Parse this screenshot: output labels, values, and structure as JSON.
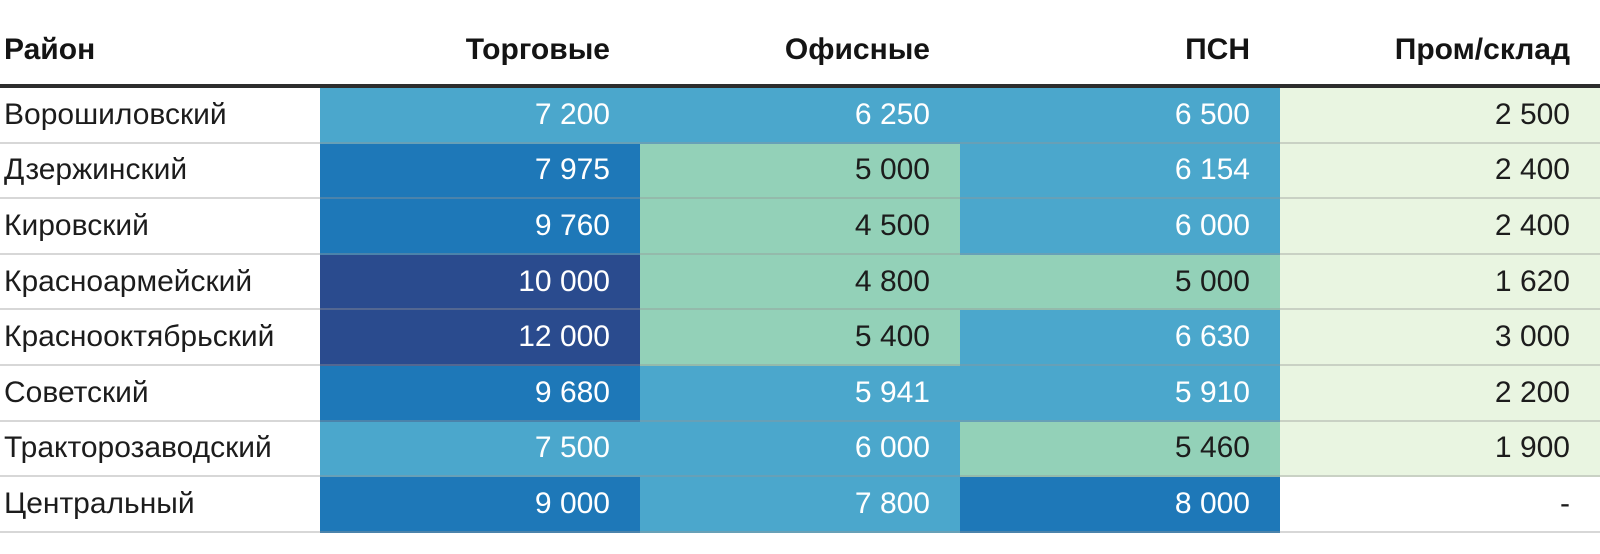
{
  "palette": {
    "blue_mid": "#4ba7cc",
    "blue_strong": "#1e78b8",
    "navy": "#2a4b8e",
    "green": "#93d1b8",
    "green_pale": "#e9f5e1",
    "header_rule": "#2d2d2d",
    "text_dark": "#1c1c1c",
    "text_light": "#ffffff"
  },
  "table": {
    "columns": [
      {
        "label": "Район"
      },
      {
        "label": "Торговые"
      },
      {
        "label": "Офисные"
      },
      {
        "label": "ПСН"
      },
      {
        "label": "Пром/склад"
      }
    ],
    "rows": [
      {
        "district": "Ворошиловский",
        "cells": [
          {
            "value": "7 200",
            "tone": "blue-mid"
          },
          {
            "value": "6 250",
            "tone": "blue-mid"
          },
          {
            "value": "6 500",
            "tone": "blue-mid"
          },
          {
            "value": "2 500",
            "tone": "green-pale"
          }
        ]
      },
      {
        "district": "Дзержинский",
        "cells": [
          {
            "value": "7 975",
            "tone": "blue-strong"
          },
          {
            "value": "5 000",
            "tone": "green"
          },
          {
            "value": "6 154",
            "tone": "blue-mid"
          },
          {
            "value": "2 400",
            "tone": "green-pale"
          }
        ]
      },
      {
        "district": "Кировский",
        "cells": [
          {
            "value": "9 760",
            "tone": "blue-strong"
          },
          {
            "value": "4 500",
            "tone": "green"
          },
          {
            "value": "6 000",
            "tone": "blue-mid"
          },
          {
            "value": "2 400",
            "tone": "green-pale"
          }
        ]
      },
      {
        "district": "Красноармейский",
        "cells": [
          {
            "value": "10 000",
            "tone": "navy"
          },
          {
            "value": "4 800",
            "tone": "green"
          },
          {
            "value": "5 000",
            "tone": "green"
          },
          {
            "value": "1 620",
            "tone": "green-pale"
          }
        ]
      },
      {
        "district": "Краснооктябрьский",
        "cells": [
          {
            "value": "12 000",
            "tone": "navy"
          },
          {
            "value": "5 400",
            "tone": "green"
          },
          {
            "value": "6 630",
            "tone": "blue-mid"
          },
          {
            "value": "3 000",
            "tone": "green-pale"
          }
        ]
      },
      {
        "district": "Советский",
        "cells": [
          {
            "value": "9 680",
            "tone": "blue-strong"
          },
          {
            "value": "5 941",
            "tone": "blue-mid"
          },
          {
            "value": "5 910",
            "tone": "blue-mid"
          },
          {
            "value": "2 200",
            "tone": "green-pale"
          }
        ]
      },
      {
        "district": "Тракторозаводский",
        "cells": [
          {
            "value": "7 500",
            "tone": "blue-mid"
          },
          {
            "value": "6 000",
            "tone": "blue-mid"
          },
          {
            "value": "5 460",
            "tone": "green"
          },
          {
            "value": "1 900",
            "tone": "green-pale"
          }
        ]
      },
      {
        "district": "Центральный",
        "cells": [
          {
            "value": "9 000",
            "tone": "blue-strong"
          },
          {
            "value": "7 800",
            "tone": "blue-mid"
          },
          {
            "value": "8 000",
            "tone": "blue-strong"
          },
          {
            "value": "-",
            "tone": "none"
          }
        ]
      }
    ]
  },
  "chart_data": {
    "type": "heatmap",
    "title": "",
    "columns": [
      "Торговые",
      "Офисные",
      "ПСН",
      "Пром/склад"
    ],
    "rows": [
      "Ворошиловский",
      "Дзержинский",
      "Кировский",
      "Красноармейский",
      "Краснооктябрьский",
      "Советский",
      "Тракторозаводский",
      "Центральный"
    ],
    "values": [
      [
        7200,
        6250,
        6500,
        2500
      ],
      [
        7975,
        5000,
        6154,
        2400
      ],
      [
        9760,
        4500,
        6000,
        2400
      ],
      [
        10000,
        4800,
        5000,
        1620
      ],
      [
        12000,
        5400,
        6630,
        3000
      ],
      [
        9680,
        5941,
        5910,
        2200
      ],
      [
        7500,
        6000,
        5460,
        1900
      ],
      [
        9000,
        7800,
        8000,
        null
      ]
    ],
    "missing_value_marker": "-",
    "color_scale_note": "higher values = darker blue; lower values = green/pale green",
    "grid": "horizontal row separators only",
    "legend": "none"
  }
}
